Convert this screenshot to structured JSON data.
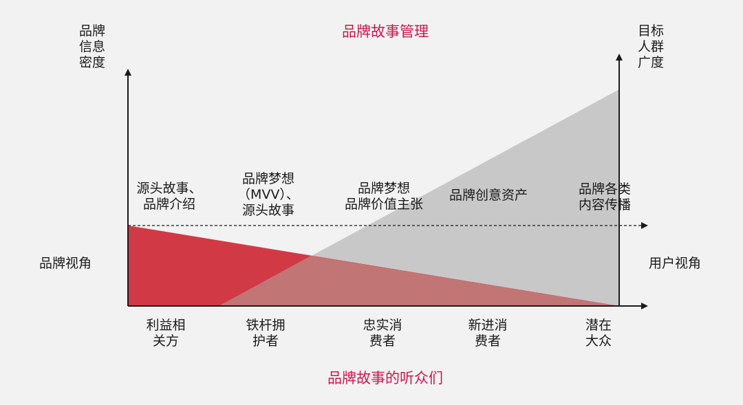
{
  "top_title": "品牌故事管理",
  "bottom_title": "品牌故事的听众们",
  "left_axis_label": "品牌\n信息\n密度",
  "right_axis_label": "目标\n人群\n广度",
  "left_side_label": "品牌视角",
  "right_side_label": "用户视角",
  "stages": [
    "源头故事、\n品牌介绍",
    "品牌梦想\n（MVV）、\n源头故事",
    "品牌梦想\n品牌价值主张",
    "品牌创意资产",
    "品牌各类\n内容传播"
  ],
  "audiences": [
    "利益相\n关方",
    "铁杆拥\n护者",
    "忠实消\n费者",
    "新进消\n费者",
    "潜在\n大众"
  ],
  "colors": {
    "title": "#c8174e",
    "brand_area": "#d13a45",
    "user_area": "#c8c8c8",
    "overlap": "#c27575",
    "axis": "#1a1a1a"
  }
}
